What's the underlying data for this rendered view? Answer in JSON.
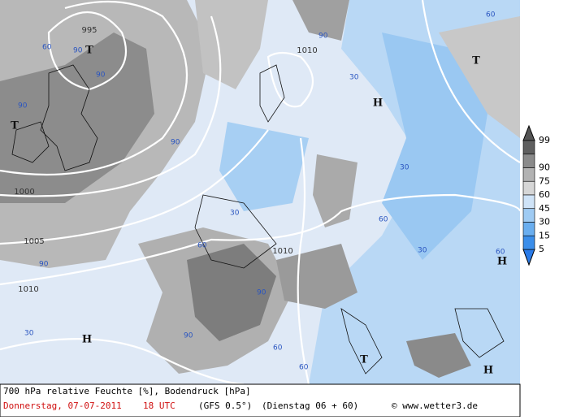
{
  "isobars": [
    "995",
    "1000",
    "1005",
    "1010",
    "1010",
    "1010"
  ],
  "humidity_labels": [
    "90",
    "90",
    "90",
    "60",
    "90",
    "60",
    "30",
    "90",
    "90",
    "30",
    "60",
    "30",
    "30",
    "60",
    "90",
    "90",
    "60",
    "30",
    "60",
    "60"
  ],
  "pressure_centers": [
    "T",
    "T",
    "T",
    "T",
    "H",
    "H",
    "H",
    "H"
  ],
  "legend": {
    "levels": [
      99,
      90,
      75,
      60,
      45,
      30,
      15,
      5
    ]
  },
  "footer": {
    "line1": "700 hPa relative Feuchte [%], Bodendruck [hPa]",
    "date": "Donnerstag, 07-07-2011",
    "time": "18 UTC",
    "model": "(GFS 0.5°)",
    "run": "(Dienstag 06 + 60)",
    "credit": "© www.wetter3.de"
  }
}
